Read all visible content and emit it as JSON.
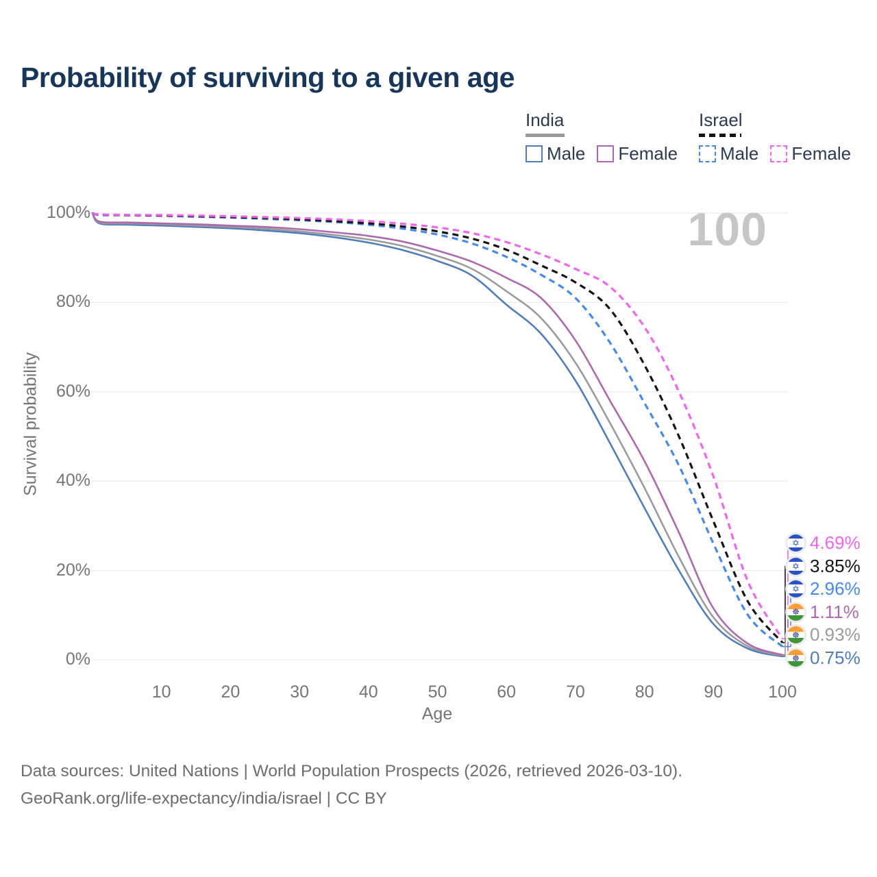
{
  "title": "Probability of surviving to a given age",
  "watermark": "100",
  "legend": {
    "groups": [
      {
        "country": "India",
        "line_style": "solid",
        "header_swatch_color": "#999999",
        "items": [
          {
            "label": "Male",
            "color": "#4e7dbd"
          },
          {
            "label": "Female",
            "color": "#ae68b0"
          }
        ]
      },
      {
        "country": "Israel",
        "line_style": "dashed",
        "header_swatch_color": "#141414",
        "items": [
          {
            "label": "Male",
            "color": "#4289f0"
          },
          {
            "label": "Female",
            "color": "#f263f0"
          }
        ]
      }
    ]
  },
  "icons": {
    "israel_flag": "✡",
    "india_flag": "☸"
  },
  "chart_data": {
    "type": "line",
    "title": "Probability of surviving to a given age",
    "xlabel": "Age",
    "ylabel": "Survival probability",
    "xlim": [
      0,
      100
    ],
    "ylim": [
      0,
      100
    ],
    "grid": true,
    "legend_position": "top-right",
    "x_ticks": [
      10,
      20,
      30,
      40,
      50,
      60,
      70,
      80,
      90,
      100
    ],
    "y_ticks": [
      {
        "v": 0,
        "label": "0%"
      },
      {
        "v": 20,
        "label": "20%"
      },
      {
        "v": 40,
        "label": "40%"
      },
      {
        "v": 60,
        "label": "60%"
      },
      {
        "v": 80,
        "label": "80%"
      },
      {
        "v": 100,
        "label": "100%"
      }
    ],
    "ages": [
      0,
      1,
      5,
      10,
      15,
      20,
      25,
      30,
      35,
      40,
      45,
      50,
      55,
      60,
      65,
      70,
      75,
      80,
      85,
      90,
      95,
      100
    ],
    "series": [
      {
        "name": "Israel Female",
        "flag": "israel",
        "color": "#f263f0",
        "dashed": true,
        "end_label": "4.69%",
        "values": [
          100,
          99.7,
          99.6,
          99.55,
          99.45,
          99.3,
          99.1,
          98.9,
          98.6,
          98.2,
          97.6,
          96.8,
          95.5,
          93.5,
          90.8,
          87.5,
          83.5,
          74.5,
          60.0,
          41.0,
          17.5,
          4.69
        ]
      },
      {
        "name": "Israel",
        "flag": "israel",
        "color": "#141414",
        "dashed": true,
        "end_label": "3.85%",
        "values": [
          100,
          99.65,
          99.55,
          99.45,
          99.3,
          99.1,
          98.9,
          98.6,
          98.2,
          97.7,
          97.0,
          95.9,
          94.3,
          91.8,
          88.3,
          84.5,
          78.5,
          66.0,
          50.0,
          31.0,
          13.0,
          3.85
        ]
      },
      {
        "name": "Israel Male",
        "flag": "israel",
        "color": "#4289f0",
        "dashed": true,
        "end_label": "2.96%",
        "values": [
          100,
          99.6,
          99.5,
          99.4,
          99.2,
          99.0,
          98.7,
          98.4,
          98.0,
          97.4,
          96.5,
          95.2,
          93.2,
          90.2,
          86.2,
          81.0,
          71.0,
          57.5,
          43.5,
          26.0,
          10.0,
          2.96
        ]
      },
      {
        "name": "India Female",
        "flag": "india",
        "color": "#ae68b0",
        "dashed": false,
        "end_label": "1.11%",
        "values": [
          100,
          98.1,
          97.9,
          97.7,
          97.5,
          97.2,
          96.9,
          96.4,
          95.7,
          94.9,
          93.6,
          91.6,
          89.1,
          85.5,
          81.0,
          71.5,
          58.0,
          44.5,
          28.5,
          11.5,
          3.6,
          1.11
        ]
      },
      {
        "name": "India",
        "flag": "india",
        "color": "#9b9b9b",
        "dashed": false,
        "end_label": "0.93%",
        "values": [
          100,
          97.9,
          97.7,
          97.5,
          97.2,
          96.9,
          96.5,
          95.9,
          95.1,
          94.1,
          92.6,
          90.4,
          87.5,
          82.5,
          76.5,
          66.5,
          53.0,
          38.5,
          23.0,
          9.5,
          3.0,
          0.93
        ]
      },
      {
        "name": "India Male",
        "flag": "india",
        "color": "#4e7dbd",
        "dashed": false,
        "end_label": "0.75%",
        "values": [
          100,
          97.7,
          97.4,
          97.2,
          96.9,
          96.6,
          96.1,
          95.5,
          94.6,
          93.4,
          91.7,
          89.3,
          86.0,
          79.5,
          73.0,
          62.5,
          48.5,
          34.0,
          20.0,
          8.0,
          2.5,
          0.75
        ]
      }
    ]
  },
  "footer": {
    "line1": "Data sources: United Nations | World Population Prospects (2026, retrieved 2026-03-10).",
    "line2": "GeoRank.org/life-expectancy/india/israel | CC BY"
  }
}
